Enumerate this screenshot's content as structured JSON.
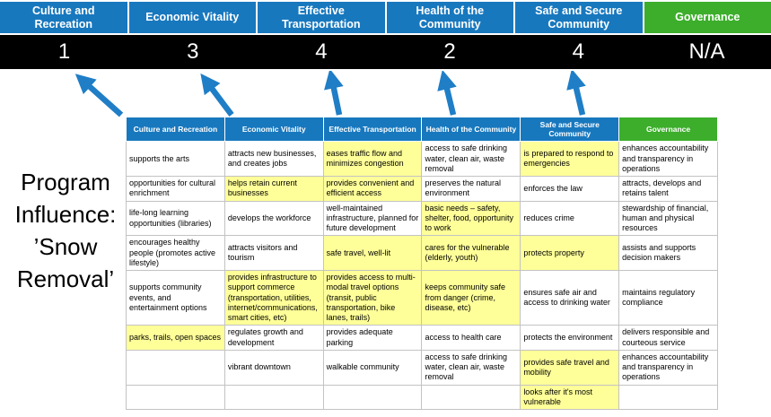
{
  "pillars": [
    {
      "label": "Culture and Recreation",
      "score": "1"
    },
    {
      "label": "Economic Vitality",
      "score": "3"
    },
    {
      "label": "Effective Transportation",
      "score": "4"
    },
    {
      "label": "Health of the Community",
      "score": "2"
    },
    {
      "label": "Safe and Secure Community",
      "score": "4"
    },
    {
      "label": "Governance",
      "score": "N/A"
    }
  ],
  "program_label": {
    "lines": [
      "Program",
      "Influence:",
      "’Snow",
      "Removal’"
    ]
  },
  "colors": {
    "blue": "#1878BE",
    "green": "#3CAE2B",
    "yellow": "#FFFF99",
    "scorebg": "#000000",
    "arrow": "#1F7EC6"
  },
  "table": {
    "headers": [
      "Culture and Recreation",
      "Economic Vitality",
      "Effective Transportation",
      "Health of the Community",
      "Safe and Secure Community",
      "Governance"
    ],
    "rows": [
      [
        {
          "text": "supports the arts",
          "highlight": false
        },
        {
          "text": "attracts new businesses, and creates jobs",
          "highlight": false
        },
        {
          "text": "eases traffic flow and minimizes congestion",
          "highlight": true
        },
        {
          "text": "access to safe drinking water, clean air, waste removal",
          "highlight": false
        },
        {
          "text": "is prepared to respond to emergencies",
          "highlight": true
        },
        {
          "text": "enhances accountability and transparency in operations",
          "highlight": false
        }
      ],
      [
        {
          "text": "opportunities for cultural enrichment",
          "highlight": false
        },
        {
          "text": "helps retain current businesses",
          "highlight": true
        },
        {
          "text": "provides convenient and efficient access",
          "highlight": true
        },
        {
          "text": "preserves the natural environment",
          "highlight": false
        },
        {
          "text": "enforces the law",
          "highlight": false
        },
        {
          "text": "attracts, develops and retains talent",
          "highlight": false
        }
      ],
      [
        {
          "text": "life-long learning opportunities (libraries)",
          "highlight": false
        },
        {
          "text": "develops the workforce",
          "highlight": false
        },
        {
          "text": "well-maintained infrastructure, planned for future development",
          "highlight": false
        },
        {
          "text": "basic needs – safety, shelter, food, opportunity to work",
          "highlight": true
        },
        {
          "text": "reduces crime",
          "highlight": false
        },
        {
          "text": "stewardship of financial, human and physical resources",
          "highlight": false
        }
      ],
      [
        {
          "text": "encourages healthy people (promotes active lifestyle)",
          "highlight": false
        },
        {
          "text": "attracts visitors and tourism",
          "highlight": false
        },
        {
          "text": "safe travel, well-lit",
          "highlight": true
        },
        {
          "text": "cares for the vulnerable (elderly, youth)",
          "highlight": true
        },
        {
          "text": "protects property",
          "highlight": true
        },
        {
          "text": "assists and supports decision makers",
          "highlight": false
        }
      ],
      [
        {
          "text": "supports community events, and entertainment options",
          "highlight": false
        },
        {
          "text": "provides infrastructure to support commerce (transportation, utilities, internet/communications, smart cities, etc)",
          "highlight": true
        },
        {
          "text": "provides access to multi-modal travel options (transit, public transportation, bike lanes, trails)",
          "highlight": true
        },
        {
          "text": "keeps community safe from danger (crime, disease, etc)",
          "highlight": true
        },
        {
          "text": "ensures safe air and access to drinking water",
          "highlight": false
        },
        {
          "text": "maintains regulatory compliance",
          "highlight": false
        }
      ],
      [
        {
          "text": "parks, trails, open spaces",
          "highlight": true
        },
        {
          "text": "regulates growth and development",
          "highlight": false
        },
        {
          "text": "provides adequate parking",
          "highlight": false
        },
        {
          "text": "access to health care",
          "highlight": false
        },
        {
          "text": "protects the environment",
          "highlight": false
        },
        {
          "text": "delivers responsible and courteous service",
          "highlight": false
        }
      ],
      [
        {
          "text": "",
          "highlight": false
        },
        {
          "text": "vibrant downtown",
          "highlight": false
        },
        {
          "text": "walkable community",
          "highlight": false
        },
        {
          "text": "access to safe drinking water, clean air, waste removal",
          "highlight": false
        },
        {
          "text": "provides safe travel and mobility",
          "highlight": true
        },
        {
          "text": "enhances accountability and transparency in operations",
          "highlight": false
        }
      ],
      [
        {
          "text": "",
          "highlight": false
        },
        {
          "text": "",
          "highlight": false
        },
        {
          "text": "",
          "highlight": false
        },
        {
          "text": "",
          "highlight": false
        },
        {
          "text": "looks after it's most vulnerable",
          "highlight": true
        },
        {
          "text": "",
          "highlight": false
        }
      ]
    ]
  }
}
